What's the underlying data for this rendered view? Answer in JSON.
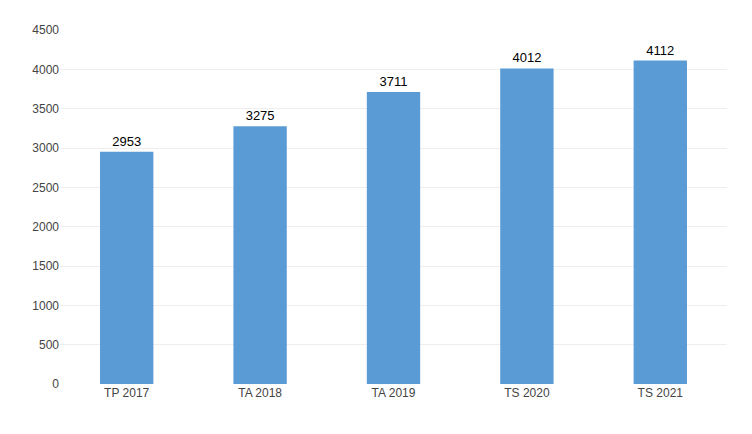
{
  "chart_data": {
    "type": "bar",
    "categories": [
      "TP 2017",
      "TA 2018",
      "TA 2019",
      "TS 2020",
      "TS 2021"
    ],
    "values": [
      2953,
      3275,
      3711,
      4012,
      4112
    ],
    "color": "#5B9BD5",
    "ylim": [
      0,
      4500
    ],
    "yticks": [
      0,
      500,
      1000,
      1500,
      2000,
      2500,
      3000,
      3500,
      4000,
      4500
    ],
    "grid": true,
    "data_labels": true
  }
}
